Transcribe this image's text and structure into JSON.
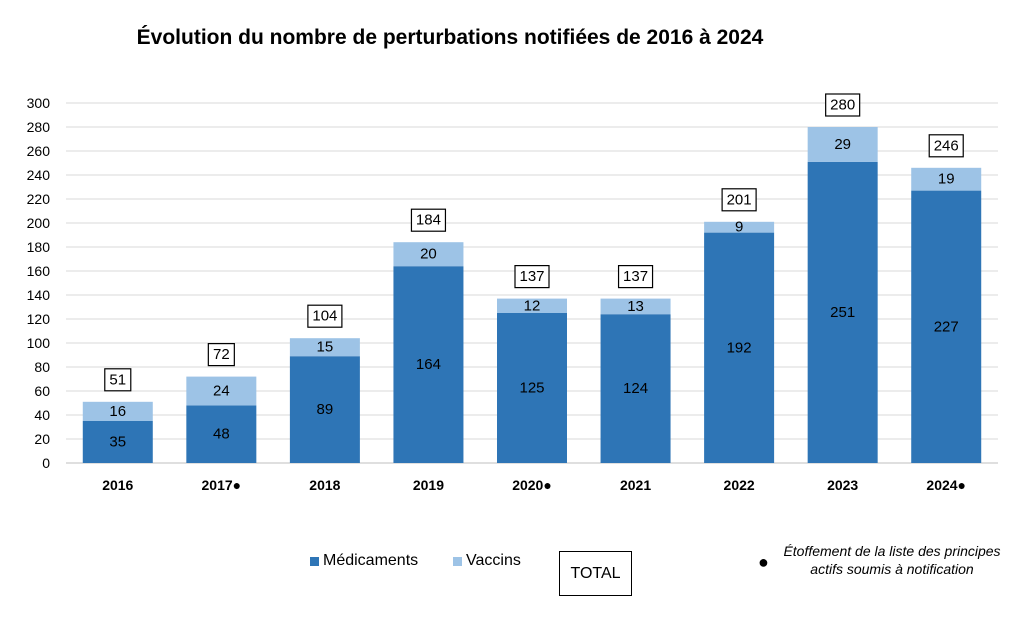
{
  "chart_data": {
    "type": "bar",
    "stacked": true,
    "title": "Évolution du nombre de perturbations notifiées de 2016 à 2024",
    "categories": [
      "2016",
      "2017●",
      "2018",
      "2019",
      "2020●",
      "2021",
      "2022",
      "2023",
      "2024●"
    ],
    "series": [
      {
        "name": "Médicaments",
        "color": "#2e75b6",
        "values": [
          35,
          48,
          89,
          164,
          125,
          124,
          192,
          251,
          227
        ]
      },
      {
        "name": "Vaccins",
        "color": "#9dc3e6",
        "values": [
          16,
          24,
          15,
          20,
          12,
          13,
          9,
          29,
          19
        ]
      }
    ],
    "totals": [
      51,
      72,
      104,
      184,
      137,
      137,
      201,
      280,
      246
    ],
    "total_label": "TOTAL",
    "ylim": [
      0,
      300
    ],
    "yticks": [
      0,
      20,
      40,
      60,
      80,
      100,
      120,
      140,
      160,
      180,
      200,
      220,
      240,
      260,
      280,
      300
    ],
    "grid": true,
    "legend_position": "bottom"
  },
  "footnote": {
    "bullet": "●",
    "text": "Étoffement de la liste des principes actifs soumis à notification"
  }
}
